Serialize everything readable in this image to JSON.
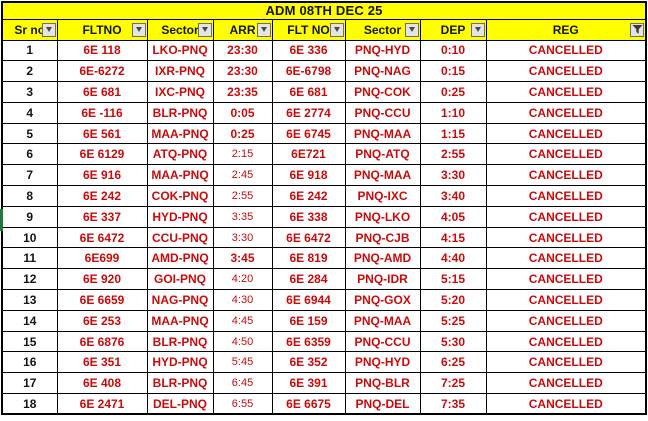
{
  "title": "ADM 08TH DEC 25",
  "columns": [
    {
      "key": "sr",
      "label": "Sr no",
      "filter": "dropdown"
    },
    {
      "key": "arr-flight",
      "label": "FLTNO",
      "filter": "dropdown"
    },
    {
      "key": "arr-sector",
      "label": "Sector",
      "filter": "dropdown"
    },
    {
      "key": "arr-time",
      "label": "ARR",
      "filter": "dropdown"
    },
    {
      "key": "dep-flight",
      "label": "FLT NO",
      "filter": "dropdown"
    },
    {
      "key": "dep-sector",
      "label": "Sector",
      "filter": "dropdown"
    },
    {
      "key": "dep-time",
      "label": "DEP",
      "filter": "dropdown"
    },
    {
      "key": "reg",
      "label": "REG",
      "filter": "funnel"
    }
  ],
  "rows": [
    {
      "sr": "1",
      "arr_flt": "6E 118",
      "arr_sector": "LKO-PNQ",
      "arr_time": "23:30",
      "arr_time_bold": true,
      "dep_flt": "6E 336",
      "dep_sector": "PNQ-HYD",
      "dep_time": "0:10",
      "reg": "CANCELLED"
    },
    {
      "sr": "2",
      "arr_flt": "6E-6272",
      "arr_sector": "IXR-PNQ",
      "arr_time": "23:30",
      "arr_time_bold": true,
      "dep_flt": "6E-6798",
      "dep_sector": "PNQ-NAG",
      "dep_time": "0:15",
      "reg": "CANCELLED"
    },
    {
      "sr": "3",
      "arr_flt": "6E 681",
      "arr_sector": "IXC-PNQ",
      "arr_time": "23:35",
      "arr_time_bold": true,
      "dep_flt": "6E 681",
      "dep_sector": "PNQ-COK",
      "dep_time": "0:25",
      "reg": "CANCELLED"
    },
    {
      "sr": "4",
      "arr_flt": "6E -116",
      "arr_sector": "BLR-PNQ",
      "arr_time": "0:05",
      "arr_time_bold": true,
      "dep_flt": "6E 2774",
      "dep_sector": "PNQ-CCU",
      "dep_time": "1:10",
      "reg": "CANCELLED"
    },
    {
      "sr": "5",
      "arr_flt": "6E 561",
      "arr_sector": "MAA-PNQ",
      "arr_time": "0:25",
      "arr_time_bold": true,
      "dep_flt": "6E 6745",
      "dep_sector": "PNQ-MAA",
      "dep_time": "1:15",
      "reg": "CANCELLED"
    },
    {
      "sr": "6",
      "arr_flt": "6E 6129",
      "arr_sector": "ATQ-PNQ",
      "arr_time": "2:15",
      "arr_time_bold": false,
      "dep_flt": "6E721",
      "dep_sector": "PNQ-ATQ",
      "dep_time": "2:55",
      "reg": "CANCELLED"
    },
    {
      "sr": "7",
      "arr_flt": "6E 916",
      "arr_sector": "MAA-PNQ",
      "arr_time": "2:45",
      "arr_time_bold": false,
      "dep_flt": "6E 918",
      "dep_sector": "PNQ-MAA",
      "dep_time": "3:30",
      "reg": "CANCELLED"
    },
    {
      "sr": "8",
      "arr_flt": "6E 242",
      "arr_sector": "COK-PNQ",
      "arr_time": "2:55",
      "arr_time_bold": false,
      "dep_flt": "6E 242",
      "dep_sector": "PNQ-IXC",
      "dep_time": "3:40",
      "reg": "CANCELLED"
    },
    {
      "sr": "9",
      "arr_flt": "6E 337",
      "arr_sector": "HYD-PNQ",
      "arr_time": "3:35",
      "arr_time_bold": false,
      "dep_flt": "6E 338",
      "dep_sector": "PNQ-LKO",
      "dep_time": "4:05",
      "reg": "CANCELLED"
    },
    {
      "sr": "10",
      "arr_flt": "6E 6472",
      "arr_sector": "CCU-PNQ",
      "arr_time": "3:30",
      "arr_time_bold": false,
      "dep_flt": "6E 6472",
      "dep_sector": "PNQ-CJB",
      "dep_time": "4:15",
      "reg": "CANCELLED"
    },
    {
      "sr": "11",
      "arr_flt": "6E699",
      "arr_sector": "AMD-PNQ",
      "arr_time": "3:45",
      "arr_time_bold": true,
      "dep_flt": "6E 819",
      "dep_sector": "PNQ-AMD",
      "dep_time": "4:40",
      "reg": "CANCELLED"
    },
    {
      "sr": "12",
      "arr_flt": "6E 920",
      "arr_sector": "GOI-PNQ",
      "arr_time": "4:20",
      "arr_time_bold": false,
      "dep_flt": "6E 284",
      "dep_sector": "PNQ-IDR",
      "dep_time": "5:15",
      "reg": "CANCELLED"
    },
    {
      "sr": "13",
      "arr_flt": "6E 6659",
      "arr_sector": "NAG-PNQ",
      "arr_time": "4:30",
      "arr_time_bold": false,
      "dep_flt": "6E 6944",
      "dep_sector": "PNQ-GOX",
      "dep_time": "5:20",
      "reg": "CANCELLED"
    },
    {
      "sr": "14",
      "arr_flt": "6E 253",
      "arr_sector": "MAA-PNQ",
      "arr_time": "4:45",
      "arr_time_bold": false,
      "dep_flt": "6E 159",
      "dep_sector": "PNQ-MAA",
      "dep_time": "5:25",
      "reg": "CANCELLED"
    },
    {
      "sr": "15",
      "arr_flt": "6E 6876",
      "arr_sector": "BLR-PNQ",
      "arr_time": "4:50",
      "arr_time_bold": false,
      "dep_flt": "6E 6359",
      "dep_sector": "PNQ-CCU",
      "dep_time": "5:30",
      "reg": "CANCELLED"
    },
    {
      "sr": "16",
      "arr_flt": "6E 351",
      "arr_sector": "HYD-PNQ",
      "arr_time": "5:45",
      "arr_time_bold": false,
      "dep_flt": "6E 352",
      "dep_sector": "PNQ-HYD",
      "dep_time": "6:25",
      "reg": "CANCELLED"
    },
    {
      "sr": "17",
      "arr_flt": "6E 408",
      "arr_sector": "BLR-PNQ",
      "arr_time": "6:45",
      "arr_time_bold": false,
      "dep_flt": "6E 391",
      "dep_sector": "PNQ-BLR",
      "dep_time": "7:25",
      "reg": "CANCELLED"
    },
    {
      "sr": "18",
      "arr_flt": "6E 2471",
      "arr_sector": "DEL-PNQ",
      "arr_time": "6:55",
      "arr_time_bold": false,
      "dep_flt": "6E 6675",
      "dep_sector": "PNQ-DEL",
      "dep_time": "7:35",
      "reg": "CANCELLED"
    }
  ],
  "selection": {
    "row": 9
  },
  "colors": {
    "yellow": "#FFFF00",
    "red": "#C90B0B",
    "black": "#141414",
    "border": "#000000",
    "filter_btn_bg": "#E4E4E4",
    "filter_btn_border": "#6E6E6E",
    "selection_green": "#1F7A3D"
  }
}
